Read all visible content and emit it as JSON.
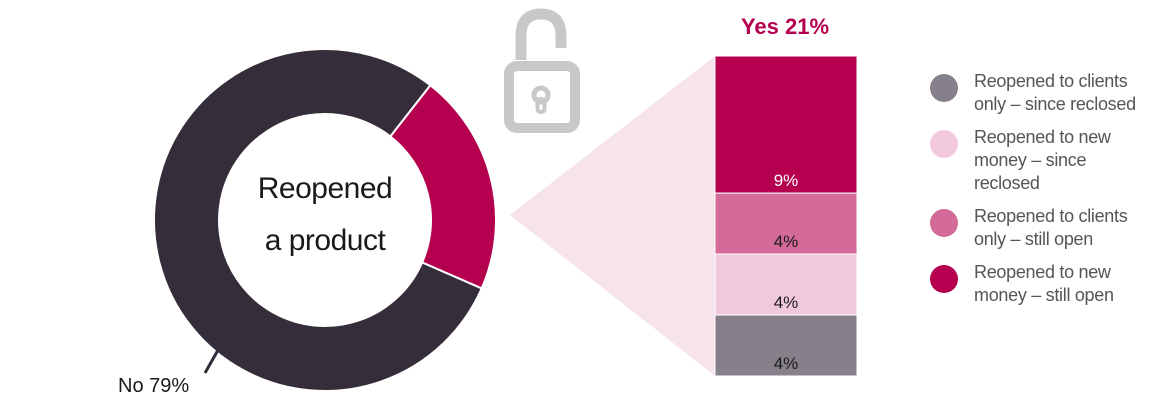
{
  "chart_data": {
    "type": "pie",
    "title": "",
    "donut": {
      "center_label_line1": "Reopened",
      "center_label_line2": "a product",
      "slices": [
        {
          "name": "No",
          "value": 79,
          "label": "No 79%",
          "color": "#352d3a"
        },
        {
          "name": "Yes",
          "value": 21,
          "color": "#b5004f"
        }
      ]
    },
    "breakdown": {
      "type": "bar",
      "stacked": true,
      "total_label": "Yes 21%",
      "segments": [
        {
          "name": "Reopened to new money – still open",
          "value": 9,
          "label": "9%",
          "color": "#b5004f"
        },
        {
          "name": "Reopened to clients only – still open",
          "value": 4,
          "label": "4%",
          "color": "#d46a98"
        },
        {
          "name": "Reopened to new money – since reclosed",
          "value": 4,
          "label": "4%",
          "color": "#f0cadb"
        },
        {
          "name": "Reopened to clients only – since reclosed",
          "value": 4,
          "label": "4%",
          "color": "#858089"
        }
      ]
    },
    "legend": {
      "placement": "right",
      "items": [
        {
          "lines": [
            "Reopened to clients",
            "only – since reclosed"
          ],
          "color": "#858089"
        },
        {
          "lines": [
            "Reopened to new",
            "money – since",
            "reclosed"
          ],
          "color": "#f0cadb"
        },
        {
          "lines": [
            "Reopened to clients",
            "only – still open"
          ],
          "color": "#d46a98"
        },
        {
          "lines": [
            "Reopened to new",
            "money – still open"
          ],
          "color": "#b5004f"
        }
      ]
    },
    "colors": {
      "connector": "#f7e3ec",
      "lock": "#c8c8c8",
      "yes_label": "#b5004f",
      "text": "#1a1a1a"
    },
    "icons": [
      "unlocked-padlock-icon"
    ]
  }
}
